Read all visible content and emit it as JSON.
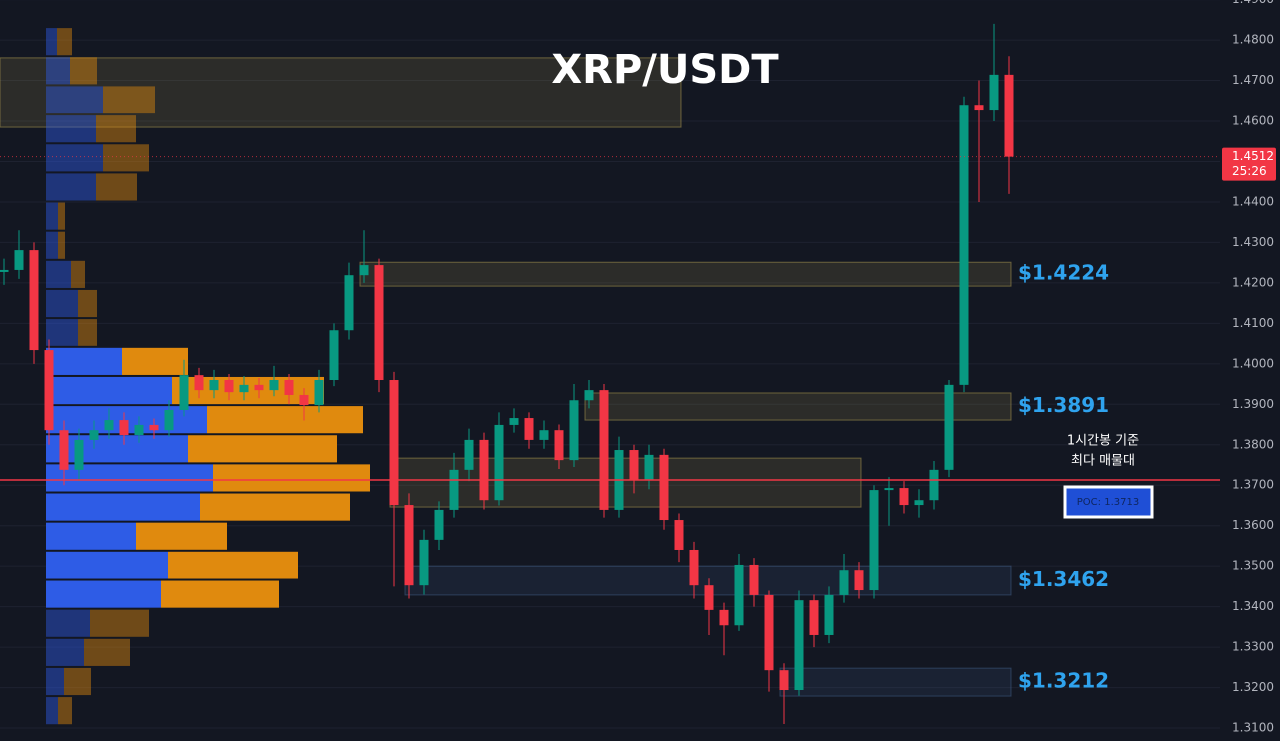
{
  "chart_data": {
    "type": "candlestick",
    "title": "XRP/USDT",
    "open": [
      1.4227,
      1.4232,
      1.4281,
      1.4034,
      1.3836,
      1.3738,
      1.3812,
      1.3836,
      1.3861,
      1.3824,
      1.3849,
      1.3836,
      1.3886,
      1.3972,
      1.3935,
      1.396,
      1.393,
      1.3948,
      1.3935,
      1.396,
      1.3923,
      1.3898,
      1.396,
      1.4083,
      1.4219,
      1.4244,
      1.396,
      1.3651,
      1.3453,
      1.3565,
      1.3639,
      1.3738,
      1.3812,
      1.3663,
      1.3849,
      1.3866,
      1.3812,
      1.3836,
      1.3762,
      1.391,
      1.3935,
      1.3639,
      1.3787,
      1.3713,
      1.3775,
      1.3614,
      1.354,
      1.3453,
      1.3392,
      1.3354,
      1.3503,
      1.3429,
      1.3243,
      1.3194,
      1.3416,
      1.333,
      1.3429,
      1.349,
      1.3441,
      1.3688,
      1.3693,
      1.3651,
      1.3663,
      1.3738,
      1.3948,
      1.4639,
      1.4627,
      1.4714
    ],
    "high": [
      1.426,
      1.433,
      1.43,
      1.406,
      1.386,
      1.384,
      1.386,
      1.389,
      1.388,
      1.387,
      1.3865,
      1.391,
      1.401,
      1.399,
      1.3985,
      1.3975,
      1.397,
      1.3965,
      1.3995,
      1.3975,
      1.394,
      1.3985,
      1.41,
      1.425,
      1.433,
      1.426,
      1.398,
      1.368,
      1.359,
      1.366,
      1.378,
      1.384,
      1.383,
      1.388,
      1.389,
      1.388,
      1.386,
      1.385,
      1.395,
      1.396,
      1.395,
      1.382,
      1.38,
      1.38,
      1.379,
      1.363,
      1.356,
      1.347,
      1.341,
      1.353,
      1.352,
      1.344,
      1.326,
      1.344,
      1.343,
      1.345,
      1.353,
      1.351,
      1.37,
      1.372,
      1.371,
      1.369,
      1.376,
      1.396,
      1.466,
      1.47,
      1.484,
      1.476
    ],
    "low": [
      1.4195,
      1.421,
      1.4,
      1.38,
      1.37,
      1.371,
      1.379,
      1.3815,
      1.38,
      1.3805,
      1.3815,
      1.382,
      1.387,
      1.3915,
      1.3915,
      1.391,
      1.391,
      1.3915,
      1.392,
      1.39,
      1.386,
      1.388,
      1.3945,
      1.406,
      1.42,
      1.393,
      1.345,
      1.342,
      1.343,
      1.354,
      1.362,
      1.371,
      1.364,
      1.365,
      1.383,
      1.379,
      1.379,
      1.374,
      1.3745,
      1.389,
      1.362,
      1.362,
      1.368,
      1.369,
      1.359,
      1.351,
      1.342,
      1.333,
      1.328,
      1.334,
      1.34,
      1.319,
      1.311,
      1.318,
      1.33,
      1.331,
      1.341,
      1.342,
      1.342,
      1.36,
      1.363,
      1.362,
      1.364,
      1.372,
      1.393,
      1.44,
      1.46,
      1.442
    ],
    "close": [
      1.4232,
      1.4281,
      1.4034,
      1.3836,
      1.3738,
      1.3812,
      1.3836,
      1.3861,
      1.3824,
      1.3849,
      1.3836,
      1.3886,
      1.3972,
      1.3935,
      1.396,
      1.393,
      1.3948,
      1.3935,
      1.396,
      1.3923,
      1.3898,
      1.396,
      1.4083,
      1.4219,
      1.4244,
      1.396,
      1.3651,
      1.3453,
      1.3565,
      1.3639,
      1.3738,
      1.3812,
      1.3663,
      1.3849,
      1.3866,
      1.3812,
      1.3836,
      1.3762,
      1.391,
      1.3935,
      1.3639,
      1.3787,
      1.3713,
      1.3775,
      1.3614,
      1.354,
      1.3453,
      1.3392,
      1.3354,
      1.3503,
      1.3429,
      1.3243,
      1.3194,
      1.3416,
      1.333,
      1.3429,
      1.349,
      1.3441,
      1.3688,
      1.3693,
      1.3651,
      1.3663,
      1.3738,
      1.3948,
      1.4639,
      1.4627,
      1.4714,
      1.4512
    ],
    "up_color": "#089981",
    "down_color": "#f23645",
    "ylim": [
      1.3068,
      1.4899
    ],
    "yticks": [
      {
        "value": 1.31,
        "label": "1.3100"
      },
      {
        "value": 1.32,
        "label": "1.3200"
      },
      {
        "value": 1.33,
        "label": "1.3300"
      },
      {
        "value": 1.34,
        "label": "1.3400"
      },
      {
        "value": 1.35,
        "label": "1.3500"
      },
      {
        "value": 1.36,
        "label": "1.3600"
      },
      {
        "value": 1.37,
        "label": "1.3700"
      },
      {
        "value": 1.38,
        "label": "1.3800"
      },
      {
        "value": 1.39,
        "label": "1.3900"
      },
      {
        "value": 1.4,
        "label": "1.4000"
      },
      {
        "value": 1.41,
        "label": "1.4100"
      },
      {
        "value": 1.42,
        "label": "1.4200"
      },
      {
        "value": 1.43,
        "label": "1.4300"
      },
      {
        "value": 1.44,
        "label": "1.4400"
      },
      {
        "value": 1.45,
        "label": "1.4500"
      },
      {
        "value": 1.46,
        "label": "1.4600"
      },
      {
        "value": 1.47,
        "label": "1.4700"
      },
      {
        "value": 1.48,
        "label": "1.4800"
      },
      {
        "value": 1.49,
        "label": "1.4900"
      }
    ],
    "grid": true,
    "zones": [
      {
        "low": 1.4585,
        "high": 1.4756,
        "start": 0,
        "end": 45,
        "color": "#c9b458"
      },
      {
        "low": 1.4192,
        "high": 1.4251,
        "start": 24,
        "end": 67,
        "color": "#c9b458",
        "label": "$1.4224"
      },
      {
        "low": 1.3861,
        "high": 1.3928,
        "start": 39,
        "end": 67,
        "color": "#c9b458",
        "label": "$1.3891"
      },
      {
        "low": 1.3646,
        "high": 1.3767,
        "start": 26,
        "end": 57,
        "color": "#c9b458"
      },
      {
        "low": 1.3429,
        "high": 1.35,
        "start": 27,
        "end": 67,
        "color": "#4a6a9a",
        "label": "$1.3462"
      },
      {
        "low": 1.3179,
        "high": 1.3248,
        "start": 52,
        "end": 67,
        "color": "#4a6a9a",
        "label": "$1.3212"
      }
    ],
    "volume_profile": {
      "bins": [
        1.4832,
        1.476,
        1.4688,
        1.4617,
        1.4545,
        1.4473,
        1.4401,
        1.4329,
        1.4257,
        1.4185,
        1.4113,
        1.4042,
        1.397,
        1.3898,
        1.3826,
        1.3754,
        1.3682,
        1.361,
        1.3538,
        1.3467,
        1.3395,
        1.3323,
        1.3251,
        1.3179,
        1.3107
      ],
      "buy": [
        11,
        24,
        57,
        50,
        57,
        50,
        12,
        12,
        25,
        32,
        32,
        76,
        126,
        161,
        142,
        167,
        154,
        90,
        122,
        115,
        44,
        38,
        18,
        12
      ],
      "sell": [
        15,
        27,
        52,
        40,
        46,
        41,
        7,
        7,
        14,
        19,
        19,
        66,
        152,
        156,
        149,
        157,
        150,
        91,
        130,
        118,
        59,
        46,
        27,
        14
      ],
      "buy_color": "#2e5ce6",
      "sell_color": "#e08a0e",
      "value_area": [
        1.3395,
        1.4042
      ],
      "xlim": [
        0,
        1220
      ]
    },
    "poc": {
      "value": 1.3713,
      "label": "POC: 1.3713",
      "color": "#f23645"
    },
    "annotation": [
      "1시간봉 기준",
      "최다 매물대"
    ],
    "last_price": {
      "value": 1.4512,
      "label": "1.4512",
      "countdown": "25:26"
    }
  }
}
